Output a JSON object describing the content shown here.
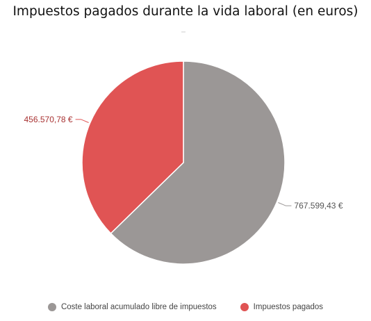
{
  "chart_data": {
    "type": "pie",
    "title": "Impuestos pagados durante la vida laboral (en euros)",
    "slices": [
      {
        "label": "Coste laboral acumulado libre de impuestos",
        "value": 767599.43,
        "value_label": "767.599,43 €",
        "color": "#9b9796"
      },
      {
        "label": "Impuestos pagados",
        "value": 456570.78,
        "value_label": "456.570,78 €",
        "color": "#e05454"
      }
    ],
    "legend_position": "bottom"
  }
}
